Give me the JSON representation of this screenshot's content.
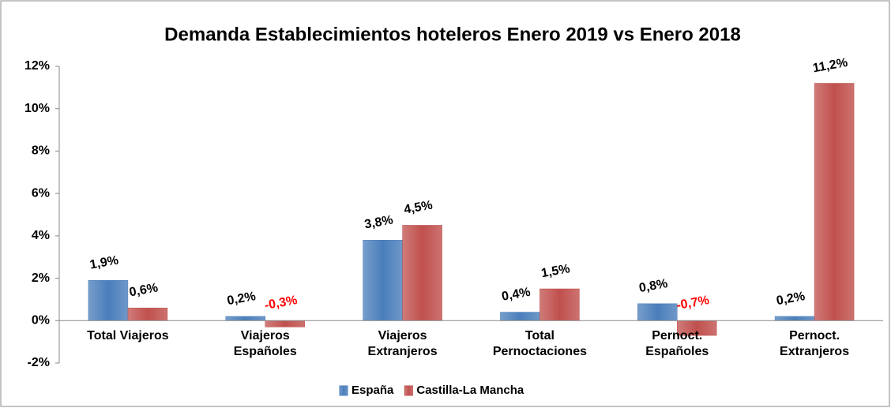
{
  "chart_data": {
    "type": "bar",
    "title": "Demanda Establecimientos hoteleros Enero 2019 vs Enero 2018",
    "categories": [
      "Total Viajeros",
      "Viajeros\nEspañoles",
      "Viajeros\nExtranjeros",
      "Total\nPernoctaciones",
      "Pernoct.\nEspañoles",
      "Pernoct.\nExtranjeros"
    ],
    "series": [
      {
        "name": "España",
        "color": "#4a7ebb",
        "values": [
          1.9,
          0.2,
          3.8,
          0.4,
          0.8,
          0.2
        ],
        "value_labels": [
          "1,9%",
          "0,2%",
          "3,8%",
          "0,4%",
          "0,8%",
          "0,2%"
        ]
      },
      {
        "name": "Castilla-La Mancha",
        "color": "#c0504d",
        "values": [
          0.6,
          -0.3,
          4.5,
          1.5,
          -0.7,
          11.2
        ],
        "value_labels": [
          "0,6%",
          "-0,3%",
          "4,5%",
          "1,5%",
          "-0,7%",
          "11,2%"
        ]
      }
    ],
    "ylim": [
      -2,
      12
    ],
    "yticks": [
      {
        "value": -2,
        "label": "-2%"
      },
      {
        "value": 0,
        "label": "0%"
      },
      {
        "value": 2,
        "label": "2%"
      },
      {
        "value": 4,
        "label": "4%"
      },
      {
        "value": 6,
        "label": "6%"
      },
      {
        "value": 8,
        "label": "8%"
      },
      {
        "value": 10,
        "label": "10%"
      },
      {
        "value": 12,
        "label": "12%"
      }
    ],
    "grid": false,
    "legend": "bottom",
    "negative_label_color": "#ff0000"
  }
}
